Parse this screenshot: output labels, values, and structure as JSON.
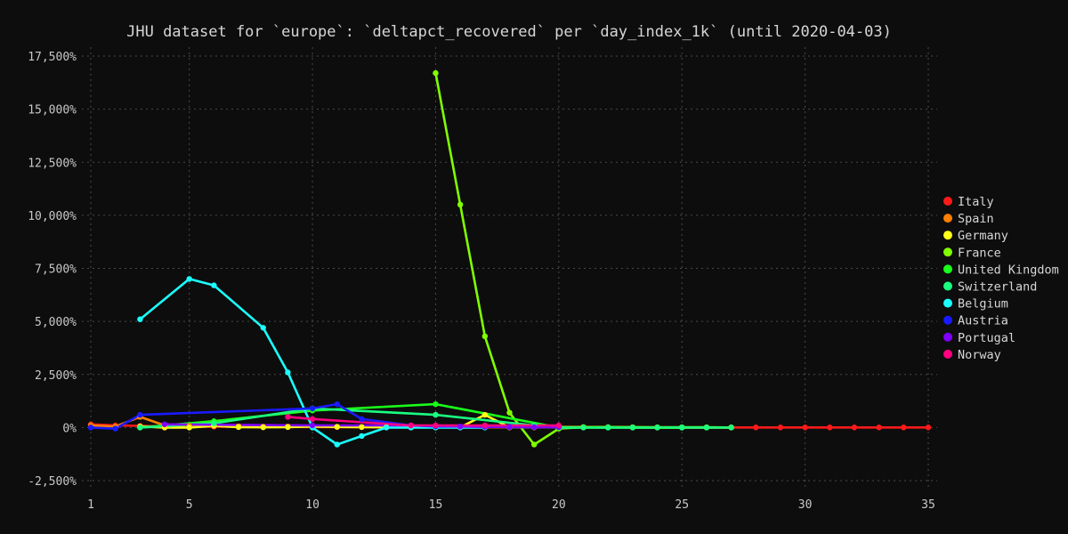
{
  "colors": {
    "background": "#0d0d0d",
    "text": "#d6d6d6",
    "grid": "#4a4a4a"
  },
  "chart_data": {
    "type": "line",
    "title": "JHU dataset for `europe`: `deltapct_recovered` per `day_index_1k` (until 2020-04-03)",
    "xlabel": "",
    "ylabel": "",
    "xlim": [
      1,
      35
    ],
    "ylim": [
      -2500,
      17500
    ],
    "x_ticks": [
      1,
      5,
      10,
      15,
      20,
      25,
      30,
      35
    ],
    "y_ticks": [
      -2500,
      0,
      2500,
      5000,
      7500,
      10000,
      12500,
      15000,
      17500
    ],
    "y_tick_labels": [
      "-2,500%",
      "0%",
      "2,500%",
      "5,000%",
      "7,500%",
      "10,000%",
      "12,500%",
      "15,000%",
      "17,500%"
    ],
    "grid": true,
    "legend_position": "right",
    "series": [
      {
        "name": "Italy",
        "color": "#ff1a1a",
        "x": [
          1,
          2,
          3,
          4,
          5,
          6,
          7,
          8,
          9,
          10,
          11,
          12,
          13,
          14,
          15,
          16,
          17,
          18,
          19,
          20,
          21,
          22,
          23,
          24,
          25,
          26,
          27,
          28,
          29,
          30,
          31,
          32,
          33,
          34,
          35
        ],
        "y": [
          150,
          100,
          80,
          50,
          40,
          40,
          40,
          30,
          30,
          25,
          20,
          20,
          15,
          15,
          15,
          10,
          10,
          10,
          10,
          10,
          10,
          10,
          5,
          5,
          5,
          5,
          5,
          5,
          5,
          5,
          5,
          5,
          5,
          5,
          5
        ]
      },
      {
        "name": "Spain",
        "color": "#ff8000",
        "x": [
          1,
          2,
          3,
          4,
          5,
          6,
          7,
          8,
          9,
          10,
          11,
          12,
          13,
          14,
          15,
          16,
          17,
          18,
          19,
          20,
          21,
          22,
          23,
          24,
          25,
          26,
          27
        ],
        "y": [
          100,
          50,
          500,
          100,
          80,
          100,
          60,
          40,
          50,
          40,
          40,
          30,
          20,
          20,
          20,
          15,
          15,
          10,
          10,
          10,
          10,
          10,
          5,
          5,
          5,
          5,
          5
        ]
      },
      {
        "name": "Germany",
        "color": "#ffff1a",
        "x": [
          3,
          4,
          5,
          6,
          7,
          8,
          9,
          10,
          11,
          12,
          13,
          14,
          15,
          16,
          17,
          18,
          19,
          20,
          21,
          22,
          23,
          24,
          25,
          26,
          27
        ],
        "y": [
          50,
          0,
          0,
          80,
          20,
          10,
          20,
          50,
          30,
          20,
          15,
          10,
          10,
          10,
          600,
          10,
          10,
          20,
          20,
          10,
          10,
          5,
          5,
          5,
          5
        ]
      },
      {
        "name": "France",
        "color": "#80ff00",
        "x": [
          15,
          16,
          17,
          18,
          19,
          20,
          21,
          22,
          23,
          24,
          25,
          26,
          27
        ],
        "y": [
          16700,
          10500,
          4300,
          700,
          -800,
          -50,
          20,
          20,
          10,
          10,
          10,
          10,
          5
        ]
      },
      {
        "name": "United Kingdom",
        "color": "#1aff1a",
        "x": [
          3,
          6,
          10,
          15,
          20,
          22,
          25
        ],
        "y": [
          0,
          300,
          800,
          1100,
          0,
          0,
          0
        ]
      },
      {
        "name": "Switzerland",
        "color": "#1aff80",
        "x": [
          3,
          6,
          10,
          15,
          19,
          20,
          21,
          22,
          23,
          24,
          25,
          26,
          27
        ],
        "y": [
          0,
          200,
          900,
          600,
          100,
          0,
          0,
          0,
          0,
          0,
          0,
          0,
          0
        ]
      },
      {
        "name": "Belgium",
        "color": "#1affff",
        "x": [
          3,
          5,
          6,
          8,
          9,
          10,
          11,
          12,
          13,
          14,
          15,
          16,
          17
        ],
        "y": [
          5100,
          7000,
          6700,
          4700,
          2600,
          0,
          -800,
          -400,
          0,
          0,
          0,
          0,
          0
        ]
      },
      {
        "name": "Austria",
        "color": "#1a1aff",
        "x": [
          1,
          2,
          3,
          10,
          11,
          12,
          14,
          15,
          16,
          17,
          18,
          19,
          20
        ],
        "y": [
          0,
          -50,
          600,
          900,
          1100,
          400,
          100,
          50,
          50,
          50,
          20,
          20,
          20
        ]
      },
      {
        "name": "Portugal",
        "color": "#8000ff",
        "x": [
          4,
          10,
          14,
          15,
          16,
          17,
          18,
          19,
          20
        ],
        "y": [
          150,
          100,
          100,
          80,
          50,
          30,
          30,
          20,
          20
        ]
      },
      {
        "name": "Norway",
        "color": "#ff0080",
        "x": [
          9,
          10,
          14,
          15,
          17,
          20
        ],
        "y": [
          500,
          400,
          100,
          100,
          100,
          100
        ]
      }
    ]
  }
}
